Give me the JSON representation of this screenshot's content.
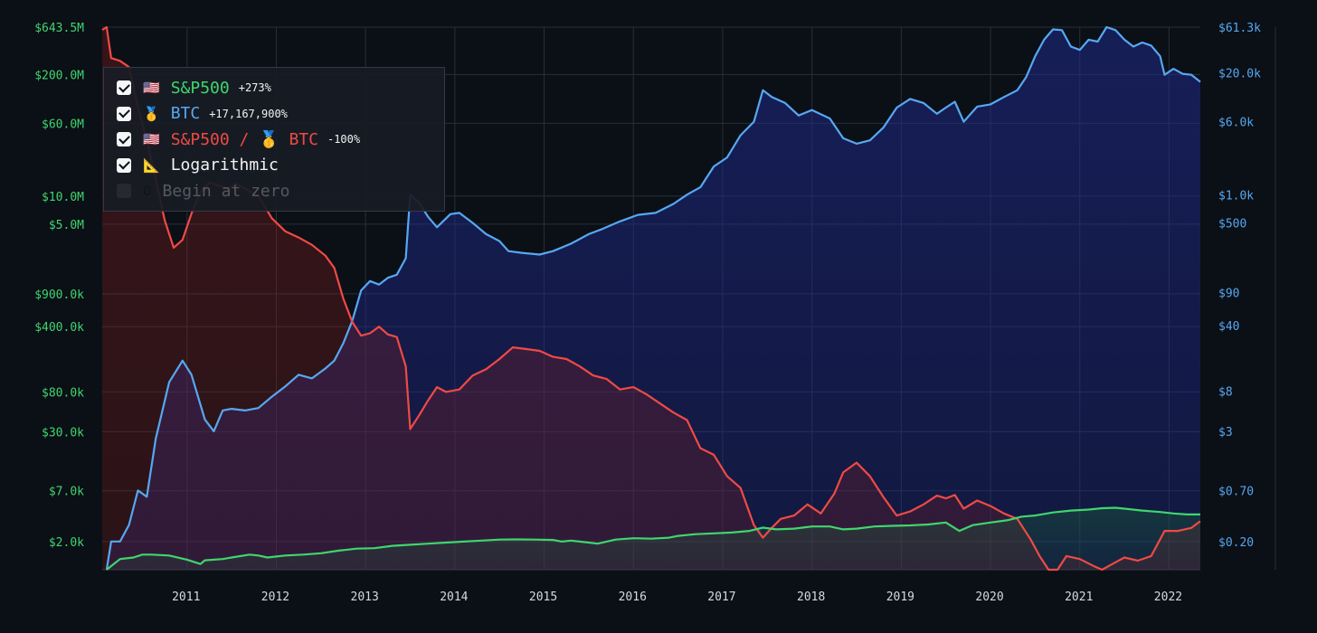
{
  "legend": {
    "items": [
      {
        "checked": true,
        "icon": "🇺🇸",
        "label": "S&P500",
        "change": "+273%",
        "color": "#3fd66e"
      },
      {
        "checked": true,
        "icon": "🥇",
        "label": "BTC",
        "change": "+17,167,900%",
        "color": "#56a8f0"
      },
      {
        "checked": true,
        "icon": "🇺🇸",
        "label": "S&P500 / 🥇 BTC",
        "change": "-100%",
        "color": "#ef4a45"
      },
      {
        "checked": true,
        "icon": "📐",
        "label": "Logarithmic",
        "change": "",
        "color": "#f2f2f2"
      },
      {
        "checked": false,
        "icon": "0",
        "label": "Begin at zero",
        "change": "",
        "color": "#f2f2f2"
      }
    ]
  },
  "chart_data": {
    "type": "line",
    "scale": "log",
    "grid": true,
    "x_ticks": [
      "2011",
      "2012",
      "2013",
      "2014",
      "2015",
      "2016",
      "2017",
      "2018",
      "2019",
      "2020",
      "2021",
      "2022"
    ],
    "left_axis_ticks": [
      "$643.5M",
      "$200.0M",
      "$60.0M",
      "$10.0M",
      "$5.0M",
      "$900.0k",
      "$400.0k",
      "$80.0k",
      "$30.0k",
      "$7.0k",
      "$2.0k"
    ],
    "right_axis_ticks": [
      "$61.3k",
      "$20.0k",
      "$6.0k",
      "$1.0k",
      "$500",
      "$90",
      "$40",
      "$8",
      "$3",
      "$0.70",
      "$0.20"
    ],
    "xlim": [
      2010.55,
      2022.85
    ],
    "left_ylim": [
      1000,
      643500000
    ],
    "right_ylim": [
      0.1,
      61300
    ],
    "series": [
      {
        "name": "S&P500",
        "axis": "left",
        "color": "#3fd66e",
        "points": [
          [
            2010.6,
            1000
          ],
          [
            2010.75,
            1300
          ],
          [
            2010.9,
            1350
          ],
          [
            2011.0,
            1450
          ],
          [
            2011.1,
            1450
          ],
          [
            2011.3,
            1420
          ],
          [
            2011.5,
            1280
          ],
          [
            2011.65,
            1150
          ],
          [
            2011.7,
            1260
          ],
          [
            2011.9,
            1300
          ],
          [
            2012.0,
            1350
          ],
          [
            2012.2,
            1450
          ],
          [
            2012.3,
            1420
          ],
          [
            2012.4,
            1350
          ],
          [
            2012.6,
            1420
          ],
          [
            2012.8,
            1450
          ],
          [
            2013.0,
            1500
          ],
          [
            2013.2,
            1600
          ],
          [
            2013.4,
            1680
          ],
          [
            2013.6,
            1700
          ],
          [
            2013.8,
            1800
          ],
          [
            2014.0,
            1850
          ],
          [
            2014.2,
            1900
          ],
          [
            2014.4,
            1950
          ],
          [
            2014.6,
            2000
          ],
          [
            2014.8,
            2050
          ],
          [
            2015.0,
            2100
          ],
          [
            2015.2,
            2110
          ],
          [
            2015.4,
            2100
          ],
          [
            2015.6,
            2080
          ],
          [
            2015.7,
            2000
          ],
          [
            2015.8,
            2050
          ],
          [
            2016.0,
            1950
          ],
          [
            2016.1,
            1900
          ],
          [
            2016.3,
            2100
          ],
          [
            2016.5,
            2170
          ],
          [
            2016.7,
            2150
          ],
          [
            2016.9,
            2200
          ],
          [
            2017.0,
            2300
          ],
          [
            2017.2,
            2400
          ],
          [
            2017.4,
            2450
          ],
          [
            2017.6,
            2500
          ],
          [
            2017.8,
            2600
          ],
          [
            2017.95,
            2820
          ],
          [
            2018.1,
            2700
          ],
          [
            2018.3,
            2750
          ],
          [
            2018.5,
            2900
          ],
          [
            2018.7,
            2900
          ],
          [
            2018.85,
            2700
          ],
          [
            2019.0,
            2750
          ],
          [
            2019.2,
            2900
          ],
          [
            2019.4,
            2950
          ],
          [
            2019.6,
            2980
          ],
          [
            2019.8,
            3050
          ],
          [
            2020.0,
            3200
          ],
          [
            2020.15,
            2600
          ],
          [
            2020.3,
            3000
          ],
          [
            2020.5,
            3200
          ],
          [
            2020.7,
            3400
          ],
          [
            2020.85,
            3700
          ],
          [
            2021.0,
            3800
          ],
          [
            2021.2,
            4100
          ],
          [
            2021.4,
            4300
          ],
          [
            2021.6,
            4400
          ],
          [
            2021.75,
            4550
          ],
          [
            2021.9,
            4600
          ],
          [
            2022.0,
            4500
          ],
          [
            2022.2,
            4300
          ],
          [
            2022.4,
            4150
          ],
          [
            2022.55,
            4000
          ],
          [
            2022.7,
            3900
          ],
          [
            2022.85,
            3900
          ]
        ]
      },
      {
        "name": "BTC",
        "axis": "right",
        "color": "#56a8f0",
        "points": [
          [
            2010.6,
            0.1
          ],
          [
            2010.65,
            0.2
          ],
          [
            2010.75,
            0.2
          ],
          [
            2010.85,
            0.3
          ],
          [
            2010.95,
            0.7
          ],
          [
            2011.05,
            0.6
          ],
          [
            2011.15,
            2.5
          ],
          [
            2011.3,
            10
          ],
          [
            2011.45,
            17
          ],
          [
            2011.55,
            12
          ],
          [
            2011.7,
            4
          ],
          [
            2011.8,
            3
          ],
          [
            2011.9,
            5
          ],
          [
            2012.0,
            5.2
          ],
          [
            2012.15,
            5
          ],
          [
            2012.3,
            5.3
          ],
          [
            2012.45,
            7
          ],
          [
            2012.6,
            9
          ],
          [
            2012.75,
            12
          ],
          [
            2012.9,
            11
          ],
          [
            2013.05,
            14
          ],
          [
            2013.15,
            17
          ],
          [
            2013.25,
            26
          ],
          [
            2013.35,
            45
          ],
          [
            2013.45,
            95
          ],
          [
            2013.55,
            120
          ],
          [
            2013.65,
            110
          ],
          [
            2013.75,
            130
          ],
          [
            2013.85,
            140
          ],
          [
            2013.95,
            210
          ],
          [
            2014.0,
            1000
          ],
          [
            2014.1,
            820
          ],
          [
            2014.2,
            580
          ],
          [
            2014.3,
            450
          ],
          [
            2014.45,
            620
          ],
          [
            2014.55,
            640
          ],
          [
            2014.7,
            500
          ],
          [
            2014.85,
            380
          ],
          [
            2015.0,
            320
          ],
          [
            2015.1,
            250
          ],
          [
            2015.25,
            240
          ],
          [
            2015.45,
            230
          ],
          [
            2015.6,
            250
          ],
          [
            2015.8,
            300
          ],
          [
            2016.0,
            380
          ],
          [
            2016.15,
            430
          ],
          [
            2016.35,
            520
          ],
          [
            2016.55,
            610
          ],
          [
            2016.75,
            640
          ],
          [
            2016.95,
            800
          ],
          [
            2017.1,
            1000
          ],
          [
            2017.25,
            1200
          ],
          [
            2017.4,
            2000
          ],
          [
            2017.55,
            2500
          ],
          [
            2017.7,
            4300
          ],
          [
            2017.85,
            6000
          ],
          [
            2017.95,
            13000
          ],
          [
            2018.05,
            11000
          ],
          [
            2018.2,
            9500
          ],
          [
            2018.35,
            7000
          ],
          [
            2018.5,
            8000
          ],
          [
            2018.7,
            6500
          ],
          [
            2018.85,
            4000
          ],
          [
            2019.0,
            3500
          ],
          [
            2019.15,
            3800
          ],
          [
            2019.3,
            5200
          ],
          [
            2019.45,
            8500
          ],
          [
            2019.6,
            10500
          ],
          [
            2019.75,
            9500
          ],
          [
            2019.9,
            7300
          ],
          [
            2020.0,
            8500
          ],
          [
            2020.1,
            9800
          ],
          [
            2020.2,
            6000
          ],
          [
            2020.35,
            8700
          ],
          [
            2020.5,
            9200
          ],
          [
            2020.65,
            11000
          ],
          [
            2020.8,
            13000
          ],
          [
            2020.9,
            18000
          ],
          [
            2021.0,
            30000
          ],
          [
            2021.1,
            45000
          ],
          [
            2021.2,
            58000
          ],
          [
            2021.3,
            57000
          ],
          [
            2021.4,
            38000
          ],
          [
            2021.5,
            35000
          ],
          [
            2021.6,
            45000
          ],
          [
            2021.7,
            43000
          ],
          [
            2021.8,
            61300
          ],
          [
            2021.9,
            57000
          ],
          [
            2022.0,
            45000
          ],
          [
            2022.1,
            38000
          ],
          [
            2022.2,
            42000
          ],
          [
            2022.3,
            39000
          ],
          [
            2022.4,
            30000
          ],
          [
            2022.45,
            19000
          ],
          [
            2022.55,
            22000
          ],
          [
            2022.65,
            19500
          ],
          [
            2022.75,
            19000
          ],
          [
            2022.85,
            16000
          ]
        ]
      },
      {
        "name": "S&P500 / BTC",
        "axis": "left",
        "color": "#ef4a45",
        "points": [
          [
            2010.55,
            600000000
          ],
          [
            2010.6,
            643500000
          ],
          [
            2010.65,
            300000000
          ],
          [
            2010.75,
            280000000
          ],
          [
            2010.85,
            240000000
          ],
          [
            2010.95,
            90000000
          ],
          [
            2011.05,
            40000000
          ],
          [
            2011.15,
            15000000
          ],
          [
            2011.25,
            5500000
          ],
          [
            2011.35,
            2800000
          ],
          [
            2011.45,
            3400000
          ],
          [
            2011.55,
            6500000
          ],
          [
            2011.65,
            11000000
          ],
          [
            2011.75,
            14000000
          ],
          [
            2011.85,
            13000000
          ],
          [
            2011.95,
            12000000
          ],
          [
            2012.05,
            13500000
          ],
          [
            2012.15,
            12000000
          ],
          [
            2012.3,
            10000000
          ],
          [
            2012.45,
            5800000
          ],
          [
            2012.6,
            4200000
          ],
          [
            2012.75,
            3600000
          ],
          [
            2012.9,
            3000000
          ],
          [
            2013.05,
            2300000
          ],
          [
            2013.15,
            1700000
          ],
          [
            2013.25,
            800000
          ],
          [
            2013.35,
            450000
          ],
          [
            2013.45,
            320000
          ],
          [
            2013.55,
            340000
          ],
          [
            2013.65,
            400000
          ],
          [
            2013.75,
            330000
          ],
          [
            2013.85,
            310000
          ],
          [
            2013.95,
            150000
          ],
          [
            2014.0,
            32000
          ],
          [
            2014.1,
            45000
          ],
          [
            2014.2,
            65000
          ],
          [
            2014.3,
            90000
          ],
          [
            2014.4,
            80000
          ],
          [
            2014.55,
            85000
          ],
          [
            2014.7,
            120000
          ],
          [
            2014.85,
            140000
          ],
          [
            2015.0,
            180000
          ],
          [
            2015.15,
            240000
          ],
          [
            2015.3,
            230000
          ],
          [
            2015.45,
            220000
          ],
          [
            2015.6,
            190000
          ],
          [
            2015.75,
            180000
          ],
          [
            2015.9,
            150000
          ],
          [
            2016.05,
            120000
          ],
          [
            2016.2,
            110000
          ],
          [
            2016.35,
            85000
          ],
          [
            2016.5,
            90000
          ],
          [
            2016.65,
            75000
          ],
          [
            2016.8,
            60000
          ],
          [
            2016.95,
            48000
          ],
          [
            2017.1,
            40000
          ],
          [
            2017.25,
            20000
          ],
          [
            2017.4,
            17000
          ],
          [
            2017.55,
            10000
          ],
          [
            2017.7,
            7500
          ],
          [
            2017.85,
            3000
          ],
          [
            2017.95,
            2200
          ],
          [
            2018.05,
            2800
          ],
          [
            2018.15,
            3500
          ],
          [
            2018.3,
            3800
          ],
          [
            2018.45,
            5000
          ],
          [
            2018.6,
            4000
          ],
          [
            2018.75,
            6500
          ],
          [
            2018.85,
            11000
          ],
          [
            2019.0,
            14000
          ],
          [
            2019.15,
            10000
          ],
          [
            2019.3,
            6000
          ],
          [
            2019.45,
            3800
          ],
          [
            2019.6,
            4200
          ],
          [
            2019.75,
            5000
          ],
          [
            2019.9,
            6200
          ],
          [
            2020.0,
            5800
          ],
          [
            2020.1,
            6300
          ],
          [
            2020.2,
            4500
          ],
          [
            2020.35,
            5500
          ],
          [
            2020.5,
            4800
          ],
          [
            2020.65,
            4000
          ],
          [
            2020.8,
            3500
          ],
          [
            2020.95,
            2100
          ],
          [
            2021.05,
            1400
          ],
          [
            2021.15,
            1000
          ],
          [
            2021.25,
            1000
          ],
          [
            2021.35,
            1400
          ],
          [
            2021.5,
            1300
          ],
          [
            2021.65,
            1100
          ],
          [
            2021.75,
            1000
          ],
          [
            2021.9,
            1200
          ],
          [
            2022.0,
            1350
          ],
          [
            2022.15,
            1250
          ],
          [
            2022.3,
            1400
          ],
          [
            2022.45,
            2600
          ],
          [
            2022.6,
            2600
          ],
          [
            2022.75,
            2800
          ],
          [
            2022.85,
            3300
          ]
        ]
      }
    ]
  }
}
